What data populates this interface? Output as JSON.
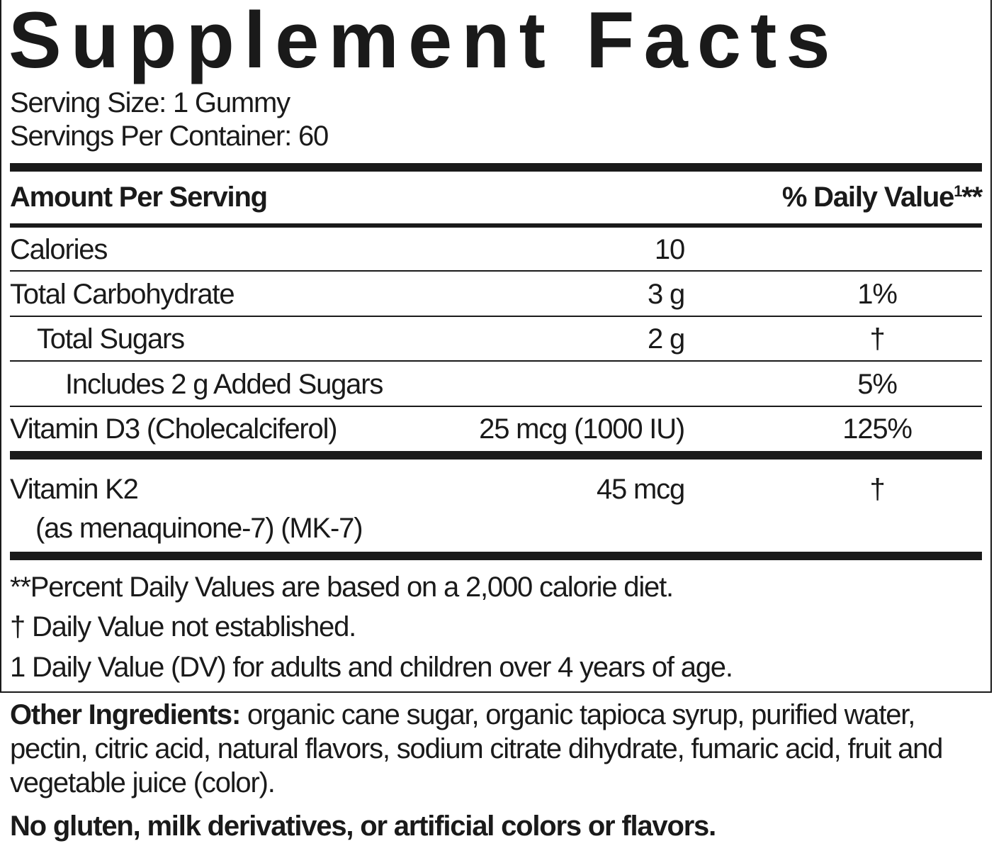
{
  "header": {
    "title": "Supplement Facts",
    "serving_size": "Serving Size: 1 Gummy",
    "servings_per_container": "Servings Per Container: 60"
  },
  "table": {
    "column_amount": "Amount Per Serving",
    "column_dv": "% Daily Value",
    "column_dv_sup": "1",
    "column_dv_suffix": "**",
    "rows": [
      {
        "name": "Calories",
        "amount": "10",
        "dv": ""
      },
      {
        "name": "Total Carbohydrate",
        "amount": "3 g",
        "dv": "1%"
      },
      {
        "name": "Total Sugars",
        "amount": "2 g",
        "dv": "†"
      },
      {
        "name": "Includes 2 g Added Sugars",
        "amount": "",
        "dv": "5%"
      },
      {
        "name": "Vitamin D3 (Cholecalciferol)",
        "amount": "25 mcg (1000 IU)",
        "dv": "125%"
      },
      {
        "name": "Vitamin K2",
        "sub": "(as menaquinone-7) (MK-7)",
        "amount": "45 mcg",
        "dv": "†"
      }
    ]
  },
  "footnotes": [
    "**Percent Daily Values are based on a 2,000 calorie diet.",
    "† Daily Value not established.",
    "1 Daily Value (DV) for adults and children over 4 years of age."
  ],
  "other_ingredients": {
    "label": "Other Ingredients:",
    "text": "organic cane sugar, organic tapioca syrup, purified water, pectin, citric acid, natural flavors, sodium citrate dihydrate, fumaric acid, fruit and vegetable juice (color)."
  },
  "statement": "No gluten, milk derivatives, or artificial colors or flavors."
}
